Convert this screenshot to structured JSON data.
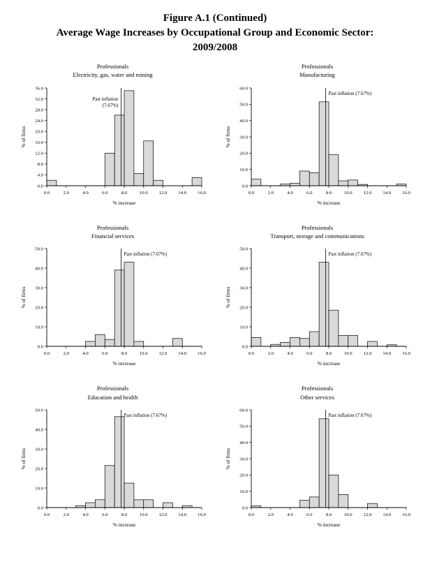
{
  "header": {
    "line1": "Figure A.1 (Continued)",
    "line2": "Average Wage Increases by Occupational Group and Economic Sector:",
    "line3": "2009/2008"
  },
  "colors": {
    "bar_fill": "#d9d9d9",
    "bar_stroke": "#000000",
    "axis": "#000000",
    "text": "#000000"
  },
  "chart_data": [
    {
      "type": "bar",
      "title_lines": [
        "Professionals",
        "Electricity, gas, water and mining"
      ],
      "xlabel": "% increase",
      "ylabel": "% of firms",
      "xlim": [
        0,
        16
      ],
      "xtick_step": 2,
      "ylim": [
        0,
        36
      ],
      "ytick_step": 4,
      "ref_line": {
        "x": 7.67,
        "label_lines": [
          "Past inflation",
          "(7.67%)"
        ],
        "side": "left"
      },
      "bins": [
        {
          "x": 0,
          "v": 2
        },
        {
          "x": 6,
          "v": 12
        },
        {
          "x": 7,
          "v": 26
        },
        {
          "x": 8,
          "v": 35
        },
        {
          "x": 9,
          "v": 4.5
        },
        {
          "x": 10,
          "v": 16.5
        },
        {
          "x": 11,
          "v": 2
        },
        {
          "x": 15,
          "v": 3
        }
      ]
    },
    {
      "type": "bar",
      "title_lines": [
        "Professionals",
        "Manufacturing"
      ],
      "xlabel": "% increase",
      "ylabel": "% of firms",
      "xlim": [
        0,
        16
      ],
      "xtick_step": 2,
      "ylim": [
        0,
        60
      ],
      "ytick_step": 10,
      "ref_line": {
        "x": 7.67,
        "label_lines": [
          "Past inflation (7.67%)"
        ],
        "side": "right"
      },
      "bins": [
        {
          "x": 0,
          "v": 4
        },
        {
          "x": 3,
          "v": 1
        },
        {
          "x": 4,
          "v": 1.5
        },
        {
          "x": 5,
          "v": 9
        },
        {
          "x": 6,
          "v": 8
        },
        {
          "x": 7,
          "v": 51.5
        },
        {
          "x": 8,
          "v": 19
        },
        {
          "x": 9,
          "v": 3
        },
        {
          "x": 10,
          "v": 3.5
        },
        {
          "x": 11,
          "v": 0.8
        },
        {
          "x": 15,
          "v": 1
        }
      ]
    },
    {
      "type": "bar",
      "title_lines": [
        "Professionals",
        "Financial services"
      ],
      "xlabel": "% increase",
      "ylabel": "% of firms",
      "xlim": [
        0,
        16
      ],
      "xtick_step": 2,
      "ylim": [
        0,
        50
      ],
      "ytick_step": 10,
      "ref_line": {
        "x": 7.67,
        "label_lines": [
          "Past inflation (7.67%)"
        ],
        "side": "right"
      },
      "bins": [
        {
          "x": 4,
          "v": 2.5
        },
        {
          "x": 5,
          "v": 6
        },
        {
          "x": 6,
          "v": 3.5
        },
        {
          "x": 7,
          "v": 39
        },
        {
          "x": 8,
          "v": 43
        },
        {
          "x": 9,
          "v": 2.5
        },
        {
          "x": 13,
          "v": 4
        }
      ]
    },
    {
      "type": "bar",
      "title_lines": [
        "Professionals",
        "Transport, storage and communications"
      ],
      "xlabel": "% increase",
      "ylabel": "% of firms",
      "xlim": [
        0,
        16
      ],
      "xtick_step": 2,
      "ylim": [
        0,
        50
      ],
      "ytick_step": 10,
      "ref_line": {
        "x": 7.67,
        "label_lines": [
          "Past inflation (7.67%)"
        ],
        "side": "right"
      },
      "bins": [
        {
          "x": 0,
          "v": 4.5
        },
        {
          "x": 2,
          "v": 1
        },
        {
          "x": 3,
          "v": 2
        },
        {
          "x": 4,
          "v": 4.5
        },
        {
          "x": 5,
          "v": 4
        },
        {
          "x": 6,
          "v": 7.5
        },
        {
          "x": 7,
          "v": 43
        },
        {
          "x": 8,
          "v": 18.5
        },
        {
          "x": 9,
          "v": 5.5
        },
        {
          "x": 10,
          "v": 5.5
        },
        {
          "x": 12,
          "v": 2.5
        },
        {
          "x": 14,
          "v": 0.8
        }
      ]
    },
    {
      "type": "bar",
      "title_lines": [
        "Professionals",
        "Education and health"
      ],
      "xlabel": "% increase",
      "ylabel": "% of firms",
      "xlim": [
        0,
        16
      ],
      "xtick_step": 2,
      "ylim": [
        0,
        50
      ],
      "ytick_step": 10,
      "ref_line": {
        "x": 7.67,
        "label_lines": [
          "Past inflation (7.67%)"
        ],
        "side": "right"
      },
      "bins": [
        {
          "x": 3,
          "v": 1
        },
        {
          "x": 4,
          "v": 2.5
        },
        {
          "x": 5,
          "v": 4
        },
        {
          "x": 6,
          "v": 21.5
        },
        {
          "x": 7,
          "v": 46.5
        },
        {
          "x": 8,
          "v": 12.5
        },
        {
          "x": 9,
          "v": 4
        },
        {
          "x": 10,
          "v": 4
        },
        {
          "x": 12,
          "v": 2.5
        },
        {
          "x": 14,
          "v": 1
        }
      ]
    },
    {
      "type": "bar",
      "title_lines": [
        "Professionals",
        "Other services"
      ],
      "xlabel": "% increase",
      "ylabel": "% of firms",
      "xlim": [
        0,
        16
      ],
      "xtick_step": 2,
      "ylim": [
        0,
        60
      ],
      "ytick_step": 10,
      "ref_line": {
        "x": 7.67,
        "label_lines": [
          "Past inflation (7.67%)"
        ],
        "side": "right"
      },
      "bins": [
        {
          "x": 0,
          "v": 1
        },
        {
          "x": 5,
          "v": 4.5
        },
        {
          "x": 6,
          "v": 6.5
        },
        {
          "x": 7,
          "v": 54.5
        },
        {
          "x": 8,
          "v": 20
        },
        {
          "x": 9,
          "v": 8
        },
        {
          "x": 12,
          "v": 2.5
        }
      ]
    }
  ]
}
